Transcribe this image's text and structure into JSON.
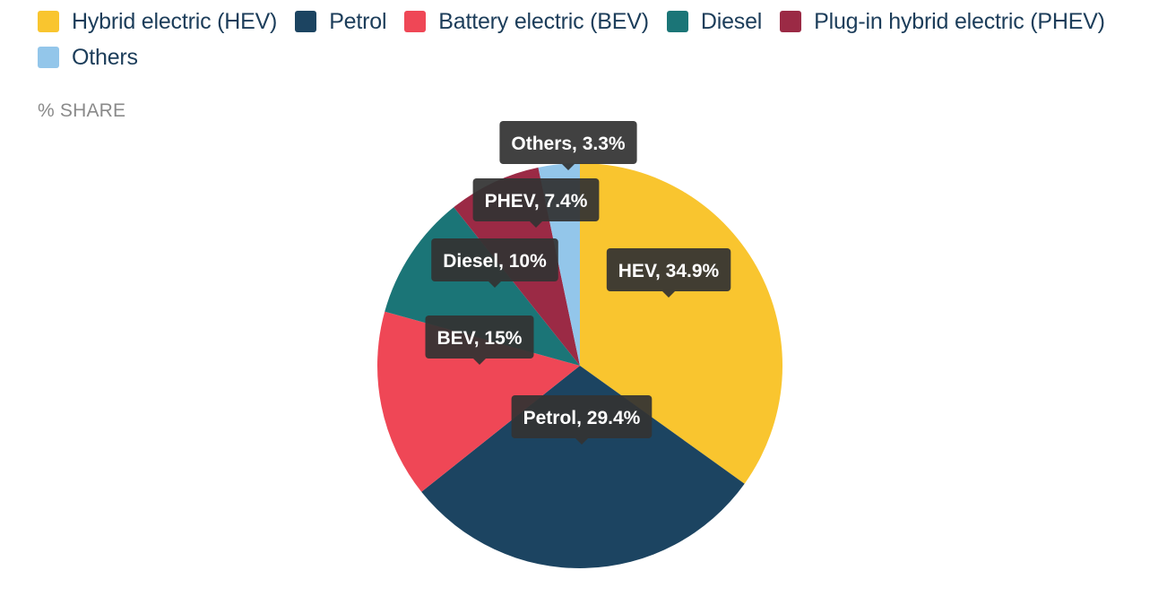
{
  "chart_data": {
    "type": "pie",
    "ylabel": "% SHARE",
    "legend": "top-left",
    "series": [
      {
        "name": "Hybrid electric (HEV)",
        "short": "HEV",
        "value": 34.9,
        "display": "34.9%",
        "color": "#f9c52f"
      },
      {
        "name": "Petrol",
        "short": "Petrol",
        "value": 29.4,
        "display": "29.4%",
        "color": "#1c4461"
      },
      {
        "name": "Battery electric (BEV)",
        "short": "BEV",
        "value": 15,
        "display": "15%",
        "color": "#ef4756"
      },
      {
        "name": "Diesel",
        "short": "Diesel",
        "value": 10,
        "display": "10%",
        "color": "#1b7577"
      },
      {
        "name": "Plug-in hybrid electric (PHEV)",
        "short": "PHEV",
        "value": 7.4,
        "display": "7.4%",
        "color": "#9b2a45"
      },
      {
        "name": "Others",
        "short": "Others",
        "value": 3.3,
        "display": "3.3%",
        "color": "#93c6ea"
      }
    ]
  }
}
